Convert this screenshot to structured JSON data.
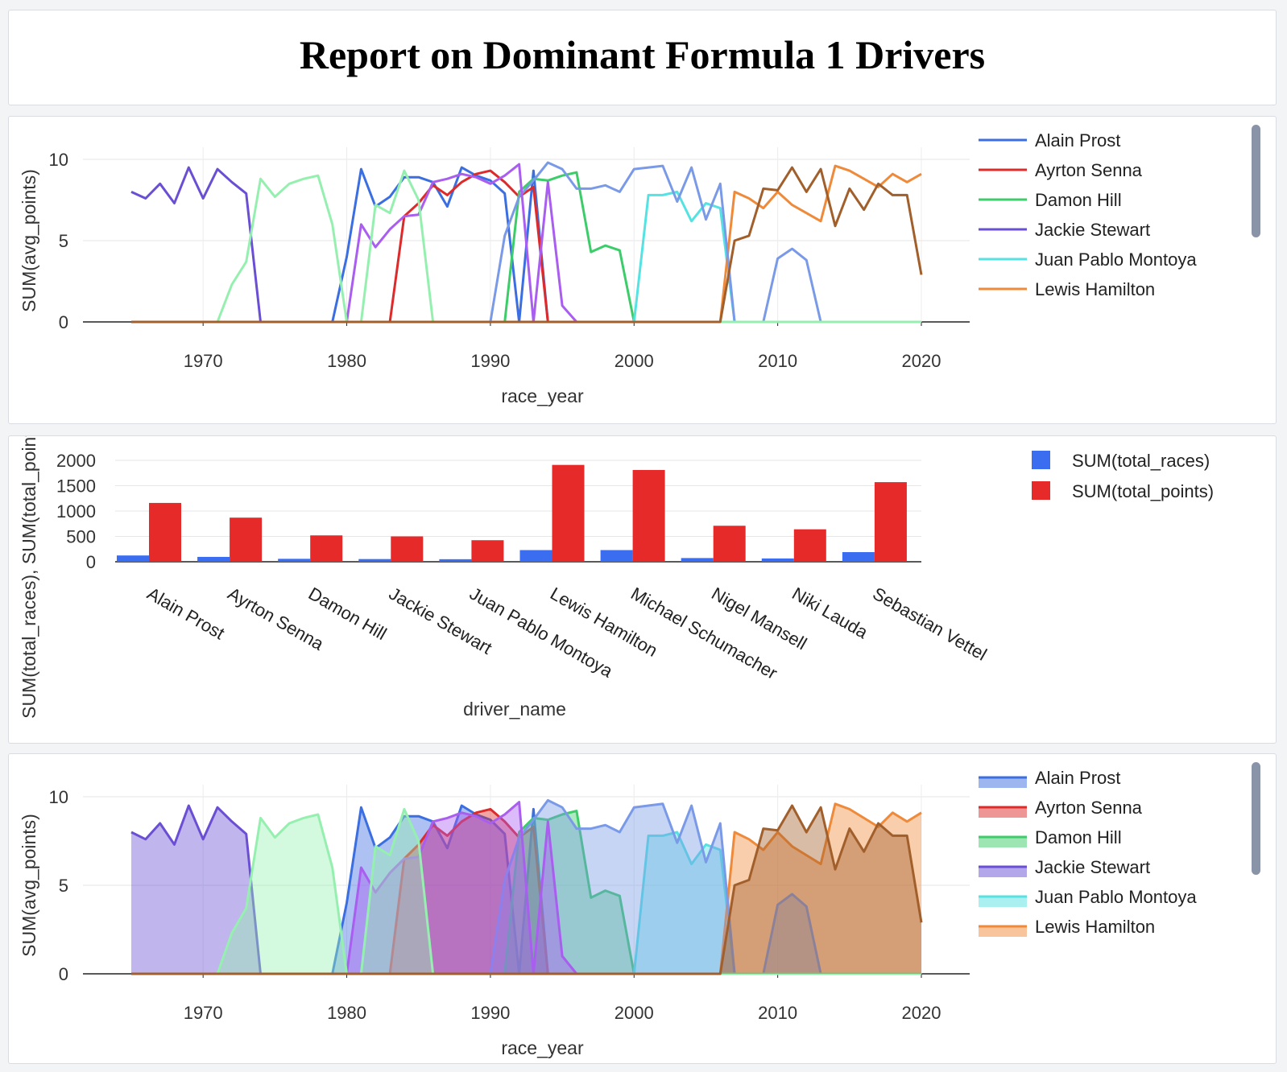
{
  "report_title": "Report on Dominant Formula 1 Drivers",
  "colors": {
    "Alain Prost": "#3b6ee0",
    "Ayrton Senna": "#dd2b2b",
    "Damon Hill": "#3dcc6a",
    "Jackie Stewart": "#6a4fd4",
    "Juan Pablo Montoya": "#55e2e2",
    "Lewis Hamilton": "#ef8a3a",
    "Michael Schumacher": "#7a9ae8",
    "Nigel Mansell": "#a95ef0",
    "Niki Lauda": "#95f0b0",
    "Sebastian Vettel": "#a15f2c",
    "bar_races": "#3a6df0",
    "bar_points": "#e62a2a"
  },
  "chart_data": [
    {
      "type": "line",
      "xlabel": "race_year",
      "ylabel": "SUM(avg_points)",
      "xlim": [
        1965,
        2020
      ],
      "ylim": [
        0,
        10
      ],
      "xticks": [
        1970,
        1980,
        1990,
        2000,
        2010,
        2020
      ],
      "yticks": [
        0,
        5,
        10
      ],
      "grid": true,
      "legend": [
        "Alain Prost",
        "Ayrton Senna",
        "Damon Hill",
        "Jackie Stewart",
        "Juan Pablo Montoya",
        "Lewis Hamilton"
      ],
      "legend_placement": "right",
      "series": [
        {
          "name": "Alain Prost",
          "points": [
            [
              1979,
              0
            ],
            [
              1980,
              4
            ],
            [
              1981,
              9.4
            ],
            [
              1982,
              7.1
            ],
            [
              1983,
              7.7
            ],
            [
              1984,
              8.9
            ],
            [
              1985,
              8.9
            ],
            [
              1986,
              8.6
            ],
            [
              1987,
              7.1
            ],
            [
              1988,
              9.5
            ],
            [
              1989,
              9.0
            ],
            [
              1990,
              8.7
            ],
            [
              1991,
              7.9
            ],
            [
              1992,
              0
            ],
            [
              1993,
              9.3
            ],
            [
              1994,
              0
            ]
          ]
        },
        {
          "name": "Ayrton Senna",
          "points": [
            [
              1983,
              0
            ],
            [
              1984,
              6.5
            ],
            [
              1985,
              7.3
            ],
            [
              1986,
              8.4
            ],
            [
              1987,
              7.8
            ],
            [
              1988,
              8.6
            ],
            [
              1989,
              9.1
            ],
            [
              1990,
              9.3
            ],
            [
              1991,
              8.6
            ],
            [
              1992,
              7.7
            ],
            [
              1993,
              8.3
            ],
            [
              1994,
              0
            ]
          ]
        },
        {
          "name": "Damon Hill",
          "points": [
            [
              1991,
              0
            ],
            [
              1992,
              8.0
            ],
            [
              1993,
              8.8
            ],
            [
              1994,
              8.7
            ],
            [
              1995,
              9.0
            ],
            [
              1996,
              9.2
            ],
            [
              1997,
              4.3
            ],
            [
              1998,
              4.7
            ],
            [
              1999,
              4.4
            ],
            [
              2000,
              0
            ]
          ]
        },
        {
          "name": "Jackie Stewart",
          "points": [
            [
              1965,
              8.0
            ],
            [
              1966,
              7.6
            ],
            [
              1967,
              8.5
            ],
            [
              1968,
              7.3
            ],
            [
              1969,
              9.5
            ],
            [
              1970,
              7.6
            ],
            [
              1971,
              9.4
            ],
            [
              1972,
              8.6
            ],
            [
              1973,
              7.9
            ],
            [
              1974,
              0
            ]
          ]
        },
        {
          "name": "Juan Pablo Montoya",
          "points": [
            [
              2000,
              0
            ],
            [
              2001,
              7.8
            ],
            [
              2002,
              7.8
            ],
            [
              2003,
              8.0
            ],
            [
              2004,
              6.2
            ],
            [
              2005,
              7.3
            ],
            [
              2006,
              7.0
            ],
            [
              2007,
              0
            ]
          ]
        },
        {
          "name": "Lewis Hamilton",
          "points": [
            [
              2006,
              0
            ],
            [
              2007,
              8.0
            ],
            [
              2008,
              7.6
            ],
            [
              2009,
              7.0
            ],
            [
              2010,
              8.0
            ],
            [
              2011,
              7.2
            ],
            [
              2012,
              6.7
            ],
            [
              2013,
              6.2
            ],
            [
              2014,
              9.6
            ],
            [
              2015,
              9.3
            ],
            [
              2016,
              8.8
            ],
            [
              2017,
              8.3
            ],
            [
              2018,
              9.1
            ],
            [
              2019,
              8.6
            ],
            [
              2020,
              9.1
            ]
          ]
        },
        {
          "name": "Michael Schumacher",
          "points": [
            [
              1990,
              0
            ],
            [
              1991,
              5.3
            ],
            [
              1992,
              7.7
            ],
            [
              1993,
              8.7
            ],
            [
              1994,
              9.8
            ],
            [
              1995,
              9.4
            ],
            [
              1996,
              8.2
            ],
            [
              1997,
              8.2
            ],
            [
              1998,
              8.4
            ],
            [
              1999,
              8.0
            ],
            [
              2000,
              9.4
            ],
            [
              2001,
              9.5
            ],
            [
              2002,
              9.6
            ],
            [
              2003,
              7.4
            ],
            [
              2004,
              9.5
            ],
            [
              2005,
              6.3
            ],
            [
              2006,
              8.5
            ],
            [
              2007,
              0
            ],
            [
              2009,
              0
            ],
            [
              2010,
              3.9
            ],
            [
              2011,
              4.5
            ],
            [
              2012,
              3.8
            ],
            [
              2013,
              0
            ]
          ]
        },
        {
          "name": "Nigel Mansell",
          "points": [
            [
              1980,
              0
            ],
            [
              1981,
              6.0
            ],
            [
              1982,
              4.6
            ],
            [
              1983,
              5.7
            ],
            [
              1984,
              6.5
            ],
            [
              1985,
              6.6
            ],
            [
              1986,
              8.6
            ],
            [
              1987,
              8.8
            ],
            [
              1988,
              9.1
            ],
            [
              1989,
              8.9
            ],
            [
              1990,
              8.5
            ],
            [
              1991,
              9.0
            ],
            [
              1992,
              9.7
            ],
            [
              1993,
              0
            ],
            [
              1994,
              8.6
            ],
            [
              1995,
              1.0
            ],
            [
              1996,
              0
            ]
          ]
        },
        {
          "name": "Niki Lauda",
          "points": [
            [
              1971,
              0
            ],
            [
              1972,
              2.3
            ],
            [
              1973,
              3.7
            ],
            [
              1974,
              8.8
            ],
            [
              1975,
              7.7
            ],
            [
              1976,
              8.5
            ],
            [
              1977,
              8.8
            ],
            [
              1978,
              9.0
            ],
            [
              1979,
              6.0
            ],
            [
              1980,
              0
            ],
            [
              1981,
              0
            ],
            [
              1982,
              7.2
            ],
            [
              1983,
              6.7
            ],
            [
              1984,
              9.3
            ],
            [
              1985,
              7.5
            ],
            [
              1986,
              0
            ]
          ]
        },
        {
          "name": "Sebastian Vettel",
          "points": [
            [
              2006,
              0
            ],
            [
              2007,
              5.0
            ],
            [
              2008,
              5.3
            ],
            [
              2009,
              8.2
            ],
            [
              2010,
              8.1
            ],
            [
              2011,
              9.5
            ],
            [
              2012,
              8.0
            ],
            [
              2013,
              9.4
            ],
            [
              2014,
              5.9
            ],
            [
              2015,
              8.2
            ],
            [
              2016,
              6.9
            ],
            [
              2017,
              8.5
            ],
            [
              2018,
              7.8
            ],
            [
              2019,
              7.8
            ],
            [
              2020,
              2.9
            ]
          ]
        }
      ]
    },
    {
      "type": "bar",
      "xlabel": "driver_name",
      "ylabel": "SUM(total_races), SUM(total_points)",
      "ylim": [
        0,
        2000
      ],
      "yticks": [
        0,
        500,
        1000,
        1500,
        2000
      ],
      "grid": true,
      "legend_placement": "top-right",
      "categories": [
        "Alain Prost",
        "Ayrton Senna",
        "Damon Hill",
        "Jackie Stewart",
        "Juan Pablo Montoya",
        "Lewis Hamilton",
        "Michael Schumacher",
        "Nigel Mansell",
        "Niki Lauda",
        "Sebastian Vettel"
      ],
      "series": [
        {
          "name": "SUM(total_races)",
          "values": [
            124,
            96,
            58,
            53,
            50,
            230,
            230,
            73,
            65,
            190
          ]
        },
        {
          "name": "SUM(total_points)",
          "values": [
            1160,
            870,
            520,
            500,
            425,
            1910,
            1810,
            710,
            640,
            1570
          ]
        }
      ]
    },
    {
      "type": "area",
      "xlabel": "race_year",
      "ylabel": "SUM(avg_points)",
      "xlim": [
        1965,
        2020
      ],
      "ylim": [
        0,
        10
      ],
      "xticks": [
        1970,
        1980,
        1990,
        2000,
        2010,
        2020
      ],
      "yticks": [
        0,
        5,
        10
      ],
      "grid": true,
      "legend": [
        "Alain Prost",
        "Ayrton Senna",
        "Damon Hill",
        "Jackie Stewart",
        "Juan Pablo Montoya",
        "Lewis Hamilton"
      ],
      "legend_placement": "right",
      "same_series_as": "line chart"
    }
  ]
}
